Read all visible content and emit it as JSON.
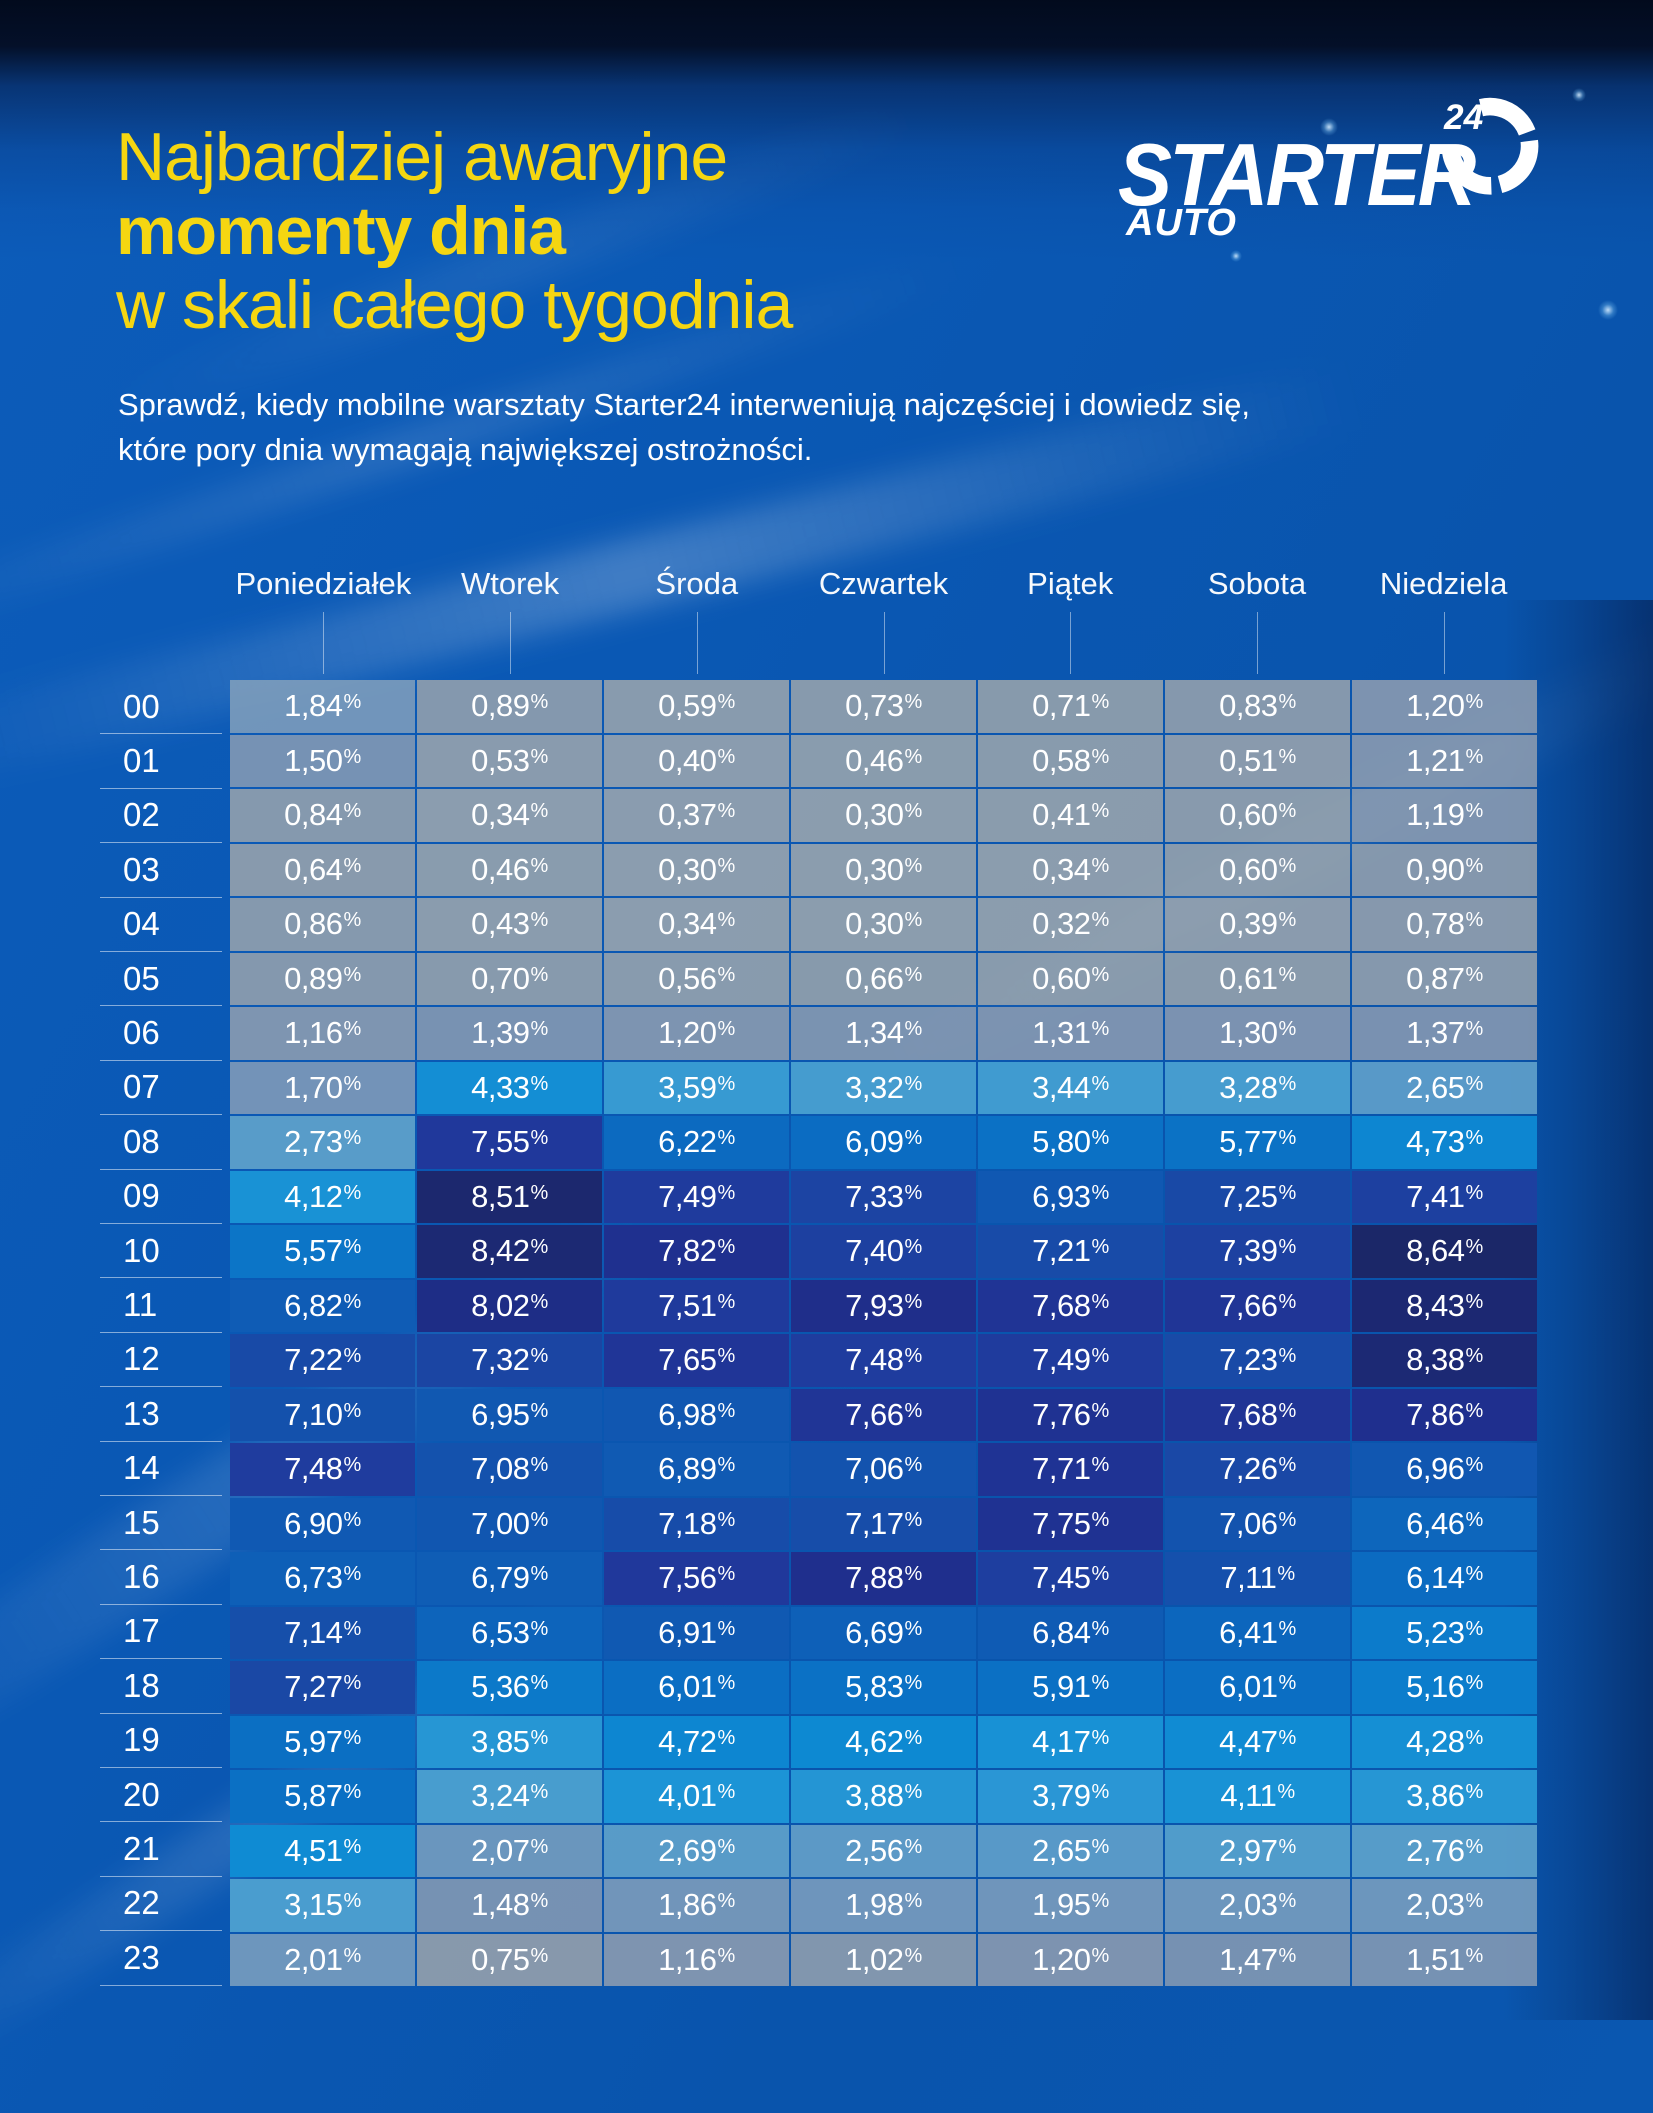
{
  "header": {
    "title_line1": "Najbardziej awaryjne",
    "title_line2": "momenty dnia",
    "title_line3": "w skali całego tygodnia",
    "subtitle_line1": "Sprawdź, kiedy mobilne warsztaty Starter24 interweniują najczęściej i dowiedz się,",
    "subtitle_line2": "które pory dnia wymagają największej ostrożności.",
    "title_color": "#f5d611"
  },
  "logo": {
    "brand": "STARTER",
    "badge": "24",
    "sub": "AUTO"
  },
  "chart_data": {
    "type": "heatmap",
    "title": "Najbardziej awaryjne momenty dnia w skali całego tygodnia",
    "columns": [
      "Poniedziałek",
      "Wtorek",
      "Środa",
      "Czwartek",
      "Piątek",
      "Sobota",
      "Niedziela"
    ],
    "rows": [
      "00",
      "01",
      "02",
      "03",
      "04",
      "05",
      "06",
      "07",
      "08",
      "09",
      "10",
      "11",
      "12",
      "13",
      "14",
      "15",
      "16",
      "17",
      "18",
      "19",
      "20",
      "21",
      "22",
      "23"
    ],
    "unit": "%",
    "decimal_separator": ",",
    "value_format": "two decimals, comma separator, percent sign",
    "values": [
      [
        1.84,
        0.89,
        0.59,
        0.73,
        0.71,
        0.83,
        1.2
      ],
      [
        1.5,
        0.53,
        0.4,
        0.46,
        0.58,
        0.51,
        1.21
      ],
      [
        0.84,
        0.34,
        0.37,
        0.3,
        0.41,
        0.6,
        1.19
      ],
      [
        0.64,
        0.46,
        0.3,
        0.3,
        0.34,
        0.6,
        0.9
      ],
      [
        0.86,
        0.43,
        0.34,
        0.3,
        0.32,
        0.39,
        0.78
      ],
      [
        0.89,
        0.7,
        0.56,
        0.66,
        0.6,
        0.61,
        0.87
      ],
      [
        1.16,
        1.39,
        1.2,
        1.34,
        1.31,
        1.3,
        1.37
      ],
      [
        1.7,
        4.33,
        3.59,
        3.32,
        3.44,
        3.28,
        2.65
      ],
      [
        2.73,
        7.55,
        6.22,
        6.09,
        5.8,
        5.77,
        4.73
      ],
      [
        4.12,
        8.51,
        7.49,
        7.33,
        6.93,
        7.25,
        7.41
      ],
      [
        5.57,
        8.42,
        7.82,
        7.4,
        7.21,
        7.39,
        8.64
      ],
      [
        6.82,
        8.02,
        7.51,
        7.93,
        7.68,
        7.66,
        8.43
      ],
      [
        7.22,
        7.32,
        7.65,
        7.48,
        7.49,
        7.23,
        8.38
      ],
      [
        7.1,
        6.95,
        6.98,
        7.66,
        7.76,
        7.68,
        7.86
      ],
      [
        7.48,
        7.08,
        6.89,
        7.06,
        7.71,
        7.26,
        6.96
      ],
      [
        6.9,
        7.0,
        7.18,
        7.17,
        7.75,
        7.06,
        6.46
      ],
      [
        6.73,
        6.79,
        7.56,
        7.88,
        7.45,
        7.11,
        6.14
      ],
      [
        7.14,
        6.53,
        6.91,
        6.69,
        6.84,
        6.41,
        5.23
      ],
      [
        7.27,
        5.36,
        6.01,
        5.83,
        5.91,
        6.01,
        5.16
      ],
      [
        5.97,
        3.85,
        4.72,
        4.62,
        4.17,
        4.47,
        4.28
      ],
      [
        5.87,
        3.24,
        4.01,
        3.88,
        3.79,
        4.11,
        3.86
      ],
      [
        4.51,
        2.07,
        2.69,
        2.56,
        2.65,
        2.97,
        2.76
      ],
      [
        3.15,
        1.48,
        1.86,
        1.98,
        1.95,
        2.03,
        2.03
      ],
      [
        2.01,
        0.75,
        1.16,
        1.02,
        1.2,
        1.47,
        1.51
      ]
    ],
    "color_scale": [
      [
        0.3,
        [
          162,
          169,
          174,
          0.85
        ]
      ],
      [
        0.7,
        [
          158,
          166,
          172,
          0.85
        ]
      ],
      [
        1.0,
        [
          152,
          162,
          174,
          0.85
        ]
      ],
      [
        1.4,
        [
          140,
          156,
          178,
          0.85
        ]
      ],
      [
        1.9,
        [
          128,
          158,
          188,
          0.87
        ]
      ],
      [
        2.3,
        [
          110,
          160,
          196,
          0.9
        ]
      ],
      [
        2.8,
        [
          92,
          162,
          204,
          0.92
        ]
      ],
      [
        3.4,
        [
          70,
          160,
          210,
          0.95
        ]
      ],
      [
        4.0,
        [
          28,
          148,
          214,
          1
        ]
      ],
      [
        4.6,
        [
          13,
          137,
          210,
          1
        ]
      ],
      [
        5.3,
        [
          12,
          122,
          202,
          1
        ]
      ],
      [
        6.0,
        [
          11,
          110,
          195,
          1
        ]
      ],
      [
        6.6,
        [
          13,
          99,
          186,
          1
        ]
      ],
      [
        7.0,
        [
          17,
          86,
          176,
          1
        ]
      ],
      [
        7.3,
        [
          27,
          70,
          164,
          1
        ]
      ],
      [
        7.55,
        [
          32,
          56,
          155,
          1
        ]
      ],
      [
        7.85,
        [
          31,
          47,
          142,
          1
        ]
      ],
      [
        8.2,
        [
          29,
          42,
          125,
          1
        ]
      ],
      [
        8.64,
        [
          27,
          39,
          104,
          1
        ]
      ]
    ],
    "legend": "none",
    "grid": "2px blue background gaps between cells"
  }
}
